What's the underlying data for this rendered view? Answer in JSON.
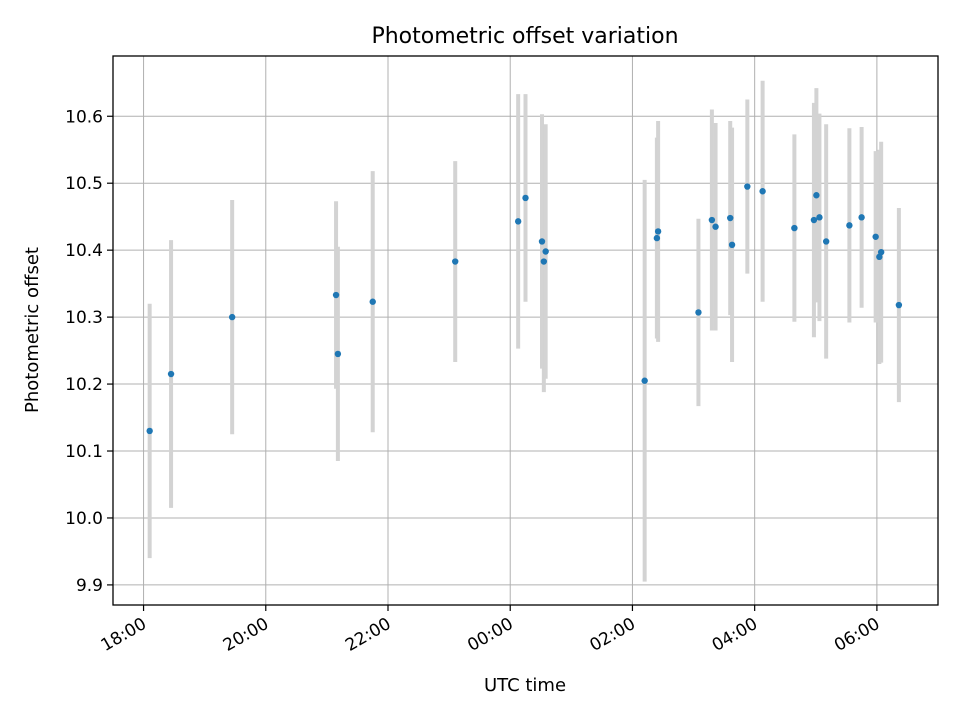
{
  "chart_data": {
    "type": "scatter",
    "title": "Photometric offset variation",
    "xlabel": "UTC time",
    "ylabel": "Photometric offset",
    "grid": true,
    "x_unit": "hours since 18:00 UTC",
    "xlim": [
      -0.5,
      13.0
    ],
    "ylim": [
      9.87,
      10.69
    ],
    "x_ticks": [
      {
        "value": 0,
        "label": "18:00"
      },
      {
        "value": 2,
        "label": "20:00"
      },
      {
        "value": 4,
        "label": "22:00"
      },
      {
        "value": 6,
        "label": "00:00"
      },
      {
        "value": 8,
        "label": "02:00"
      },
      {
        "value": 10,
        "label": "04:00"
      },
      {
        "value": 12,
        "label": "06:00"
      }
    ],
    "y_ticks": [
      {
        "value": 9.9,
        "label": "9.9"
      },
      {
        "value": 10.0,
        "label": "10.0"
      },
      {
        "value": 10.1,
        "label": "10.1"
      },
      {
        "value": 10.2,
        "label": "10.2"
      },
      {
        "value": 10.3,
        "label": "10.3"
      },
      {
        "value": 10.4,
        "label": "10.4"
      },
      {
        "value": 10.5,
        "label": "10.5"
      },
      {
        "value": 10.6,
        "label": "10.6"
      }
    ],
    "colors": {
      "point": "#1f77b4",
      "errorbar": "#d3d3d3",
      "grid": "#b0b0b0"
    },
    "points": [
      {
        "x": 0.1,
        "y": 10.13,
        "err": 0.19
      },
      {
        "x": 0.45,
        "y": 10.215,
        "err": 0.2
      },
      {
        "x": 1.45,
        "y": 10.3,
        "err": 0.175
      },
      {
        "x": 3.15,
        "y": 10.333,
        "err": 0.14
      },
      {
        "x": 3.18,
        "y": 10.245,
        "err": 0.16
      },
      {
        "x": 3.75,
        "y": 10.323,
        "err": 0.195
      },
      {
        "x": 5.1,
        "y": 10.383,
        "err": 0.15
      },
      {
        "x": 6.13,
        "y": 10.443,
        "err": 0.19
      },
      {
        "x": 6.25,
        "y": 10.478,
        "err": 0.155
      },
      {
        "x": 6.52,
        "y": 10.413,
        "err": 0.19
      },
      {
        "x": 6.55,
        "y": 10.383,
        "err": 0.195
      },
      {
        "x": 6.58,
        "y": 10.398,
        "err": 0.19
      },
      {
        "x": 8.2,
        "y": 10.205,
        "err": 0.3
      },
      {
        "x": 8.4,
        "y": 10.418,
        "err": 0.15
      },
      {
        "x": 8.42,
        "y": 10.428,
        "err": 0.165
      },
      {
        "x": 9.08,
        "y": 10.307,
        "err": 0.14
      },
      {
        "x": 9.3,
        "y": 10.445,
        "err": 0.165
      },
      {
        "x": 9.36,
        "y": 10.435,
        "err": 0.155
      },
      {
        "x": 9.6,
        "y": 10.448,
        "err": 0.145
      },
      {
        "x": 9.63,
        "y": 10.408,
        "err": 0.175
      },
      {
        "x": 9.88,
        "y": 10.495,
        "err": 0.13
      },
      {
        "x": 10.13,
        "y": 10.488,
        "err": 0.165
      },
      {
        "x": 10.65,
        "y": 10.433,
        "err": 0.14
      },
      {
        "x": 10.97,
        "y": 10.445,
        "err": 0.175
      },
      {
        "x": 11.01,
        "y": 10.482,
        "err": 0.16
      },
      {
        "x": 11.06,
        "y": 10.449,
        "err": 0.155
      },
      {
        "x": 11.17,
        "y": 10.413,
        "err": 0.175
      },
      {
        "x": 11.55,
        "y": 10.437,
        "err": 0.145
      },
      {
        "x": 11.75,
        "y": 10.449,
        "err": 0.135
      },
      {
        "x": 11.98,
        "y": 10.42,
        "err": 0.128
      },
      {
        "x": 12.04,
        "y": 10.39,
        "err": 0.16
      },
      {
        "x": 12.07,
        "y": 10.397,
        "err": 0.165
      },
      {
        "x": 12.36,
        "y": 10.318,
        "err": 0.145
      }
    ]
  }
}
